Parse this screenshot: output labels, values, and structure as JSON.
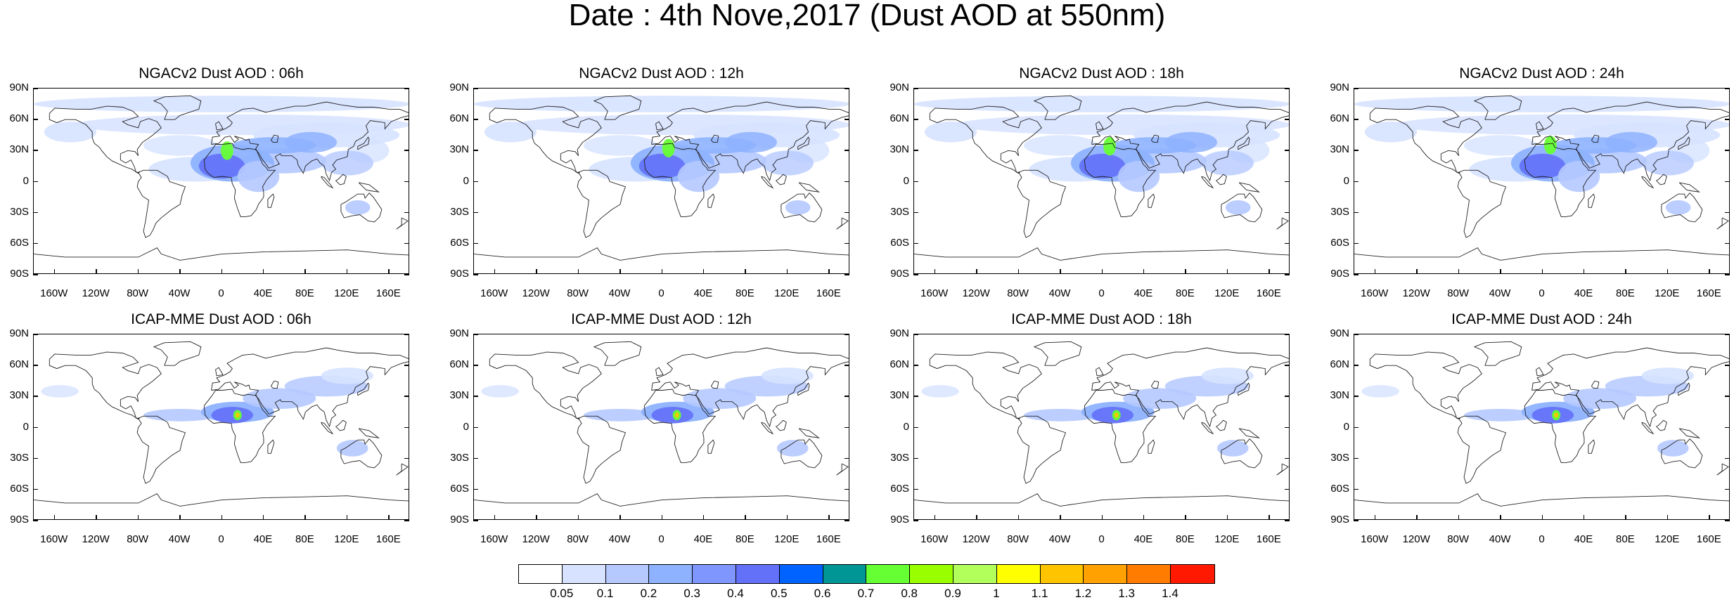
{
  "title": "Date : 4th Nove,2017 (Dust AOD at 550nm)",
  "lat_ticks": [
    "90N",
    "60N",
    "30N",
    "0",
    "30S",
    "60S",
    "90S"
  ],
  "lon_ticks": [
    "160W",
    "120W",
    "80W",
    "40W",
    "0",
    "40E",
    "80E",
    "120E",
    "160E"
  ],
  "panels": [
    {
      "title": "NGACv2 Dust AOD : 06h",
      "model": "NGACv2",
      "hour": "06h"
    },
    {
      "title": "NGACv2 Dust AOD : 12h",
      "model": "NGACv2",
      "hour": "12h"
    },
    {
      "title": "NGACv2 Dust AOD : 18h",
      "model": "NGACv2",
      "hour": "18h"
    },
    {
      "title": "NGACv2 Dust AOD : 24h",
      "model": "NGACv2",
      "hour": "24h"
    },
    {
      "title": "ICAP-MME Dust AOD : 06h",
      "model": "ICAP-MME",
      "hour": "06h"
    },
    {
      "title": "ICAP-MME Dust AOD : 12h",
      "model": "ICAP-MME",
      "hour": "12h"
    },
    {
      "title": "ICAP-MME Dust AOD : 18h",
      "model": "ICAP-MME",
      "hour": "18h"
    },
    {
      "title": "ICAP-MME Dust AOD : 24h",
      "model": "ICAP-MME",
      "hour": "24h"
    }
  ],
  "colorbar": {
    "labels": [
      "0.05",
      "0.1",
      "0.2",
      "0.3",
      "0.4",
      "0.5",
      "0.6",
      "0.7",
      "0.8",
      "0.9",
      "1",
      "1.1",
      "1.2",
      "1.3",
      "1.4"
    ],
    "colors": [
      "#ffffff",
      "#d6e2ff",
      "#b5c9ff",
      "#8eb2ff",
      "#7f96ff",
      "#6370f8",
      "#0063ff",
      "#009696",
      "#66ff33",
      "#99ff00",
      "#b2ff5c",
      "#ffff00",
      "#ffc400",
      "#ffa100",
      "#ff7c00",
      "#ff1900"
    ]
  }
}
